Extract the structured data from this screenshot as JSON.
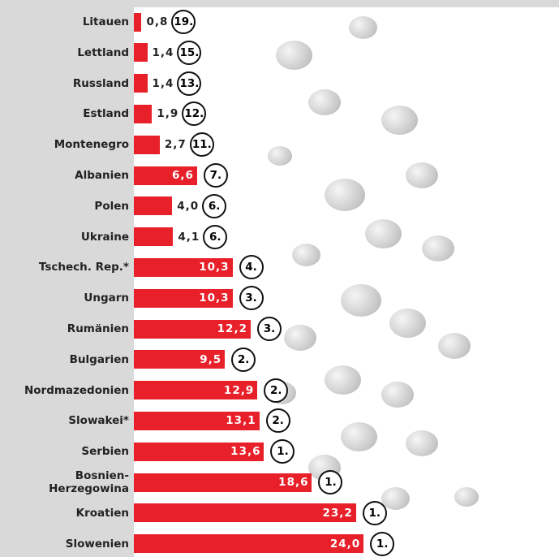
{
  "chart_data": {
    "type": "bar",
    "orientation": "horizontal",
    "color": "#e8202a",
    "categories": [
      "Litauen",
      "Lettland",
      "Russland",
      "Estland",
      "Montenegro",
      "Albanien",
      "Polen",
      "Ukraine",
      "Tschech. Rep.*",
      "Ungarn",
      "Rumänien",
      "Bulgarien",
      "Nordmazedonien",
      "Slowakei*",
      "Serbien",
      "Bosnien-\nHerzegowina",
      "Kroatien",
      "Slowenien"
    ],
    "values": [
      0.8,
      1.4,
      1.4,
      1.9,
      2.7,
      6.6,
      4.0,
      4.1,
      10.3,
      10.3,
      12.2,
      9.5,
      12.9,
      13.1,
      13.6,
      18.6,
      23.2,
      24.0
    ],
    "value_labels": [
      "0,8",
      "1,4",
      "1,4",
      "1,9",
      "2,7",
      "6,6",
      "4,0",
      "4,1",
      "10,3",
      "10,3",
      "12,2",
      "9,5",
      "12,9",
      "13,1",
      "13,6",
      "18,6",
      "23,2",
      "24,0"
    ],
    "ranks": [
      "19.",
      "15.",
      "13.",
      "12.",
      "11.",
      "7.",
      "6.",
      "6.",
      "4.",
      "3.",
      "3.",
      "2.",
      "2.",
      "2.",
      "1.",
      "1.",
      "1.",
      "1."
    ]
  }
}
